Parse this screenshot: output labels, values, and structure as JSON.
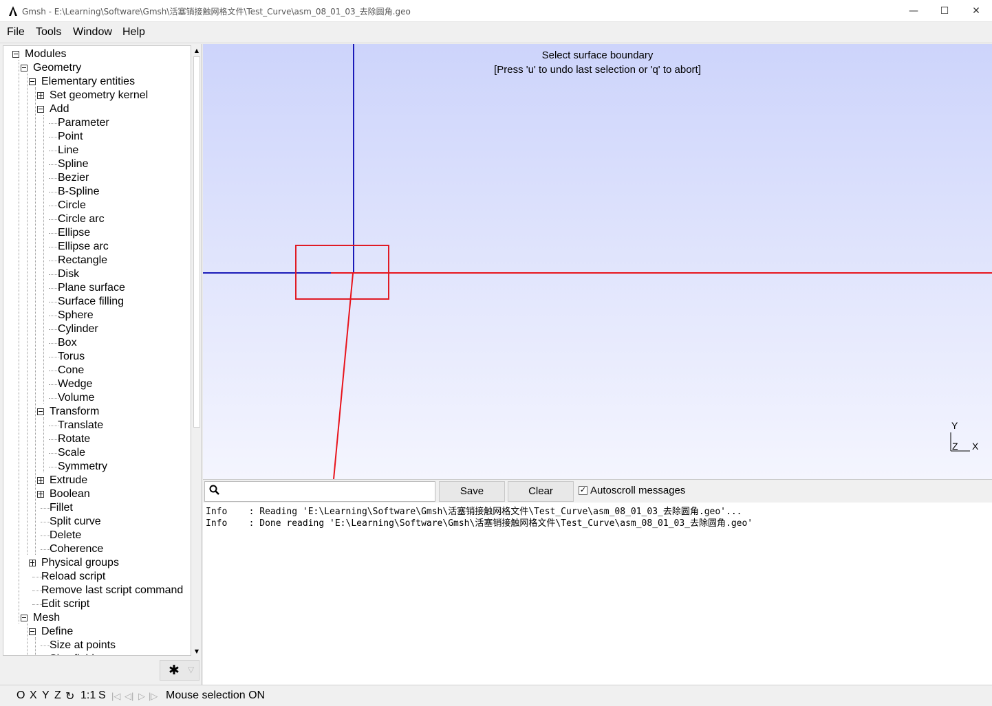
{
  "window": {
    "title": "Gmsh - E:\\Learning\\Software\\Gmsh\\活塞销接触网格文件\\Test_Curve\\asm_08_01_03_去除圆角.geo",
    "minimize": "—",
    "maximize": "☐",
    "close": "✕"
  },
  "menu": {
    "file": "File",
    "tools": "Tools",
    "window": "Window",
    "help": "Help"
  },
  "tree": {
    "items": [
      {
        "label": "Modules",
        "toggle": "minus"
      },
      {
        "label": "Geometry",
        "toggle": "minus"
      },
      {
        "label": "Elementary entities",
        "toggle": "minus"
      },
      {
        "label": "Set geometry kernel",
        "toggle": "plus"
      },
      {
        "label": "Add",
        "toggle": "minus"
      },
      {
        "label": "Parameter"
      },
      {
        "label": "Point"
      },
      {
        "label": "Line"
      },
      {
        "label": "Spline"
      },
      {
        "label": "Bezier"
      },
      {
        "label": "B-Spline"
      },
      {
        "label": "Circle"
      },
      {
        "label": "Circle arc"
      },
      {
        "label": "Ellipse"
      },
      {
        "label": "Ellipse arc"
      },
      {
        "label": "Rectangle"
      },
      {
        "label": "Disk"
      },
      {
        "label": "Plane surface"
      },
      {
        "label": "Surface filling"
      },
      {
        "label": "Sphere"
      },
      {
        "label": "Cylinder"
      },
      {
        "label": "Box"
      },
      {
        "label": "Torus"
      },
      {
        "label": "Cone"
      },
      {
        "label": "Wedge"
      },
      {
        "label": "Volume"
      },
      {
        "label": "Transform",
        "toggle": "minus"
      },
      {
        "label": "Translate"
      },
      {
        "label": "Rotate"
      },
      {
        "label": "Scale"
      },
      {
        "label": "Symmetry"
      },
      {
        "label": "Extrude",
        "toggle": "plus"
      },
      {
        "label": "Boolean",
        "toggle": "plus"
      },
      {
        "label": "Fillet"
      },
      {
        "label": "Split curve"
      },
      {
        "label": "Delete"
      },
      {
        "label": "Coherence"
      },
      {
        "label": "Physical groups",
        "toggle": "plus"
      },
      {
        "label": "Reload script"
      },
      {
        "label": "Remove last script command"
      },
      {
        "label": "Edit script"
      },
      {
        "label": "Mesh",
        "toggle": "minus"
      },
      {
        "label": "Define",
        "toggle": "minus"
      },
      {
        "label": "Size at points"
      },
      {
        "label": "Size fields"
      }
    ]
  },
  "graphic": {
    "prompt_line1": "Select surface boundary",
    "prompt_line2": "[Press 'u' to undo last selection or 'q' to abort]",
    "axis_y": "Y",
    "axis_z": "Z",
    "axis_x": "X",
    "colors": {
      "background_top": "#cdd4fb",
      "background_bottom": "#f4f5fe",
      "blue_line": "#1a1ab8",
      "red_line": "#e8141c",
      "selection_box": "#e01b24"
    }
  },
  "console": {
    "search_placeholder": "",
    "save_label": "Save",
    "clear_label": "Clear",
    "autoscroll_label": "Autoscroll messages",
    "autoscroll_checked": true,
    "messages": [
      "Info    : Reading 'E:\\Learning\\Software\\Gmsh\\活塞销接触网格文件\\Test_Curve\\asm_08_01_03_去除圆角.geo'...",
      "Info    : Done reading 'E:\\Learning\\Software\\Gmsh\\活塞销接触网格文件\\Test_Curve\\asm_08_01_03_去除圆角.geo'"
    ]
  },
  "statusbar": {
    "o": "O",
    "x": "X",
    "y": "Y",
    "z": "Z",
    "rotate": "↻",
    "scale": "1:1",
    "s": "S",
    "first": "|◁",
    "prev": "◁|",
    "play": "▷",
    "last": "|▷",
    "status_text": "Mouse selection ON"
  }
}
